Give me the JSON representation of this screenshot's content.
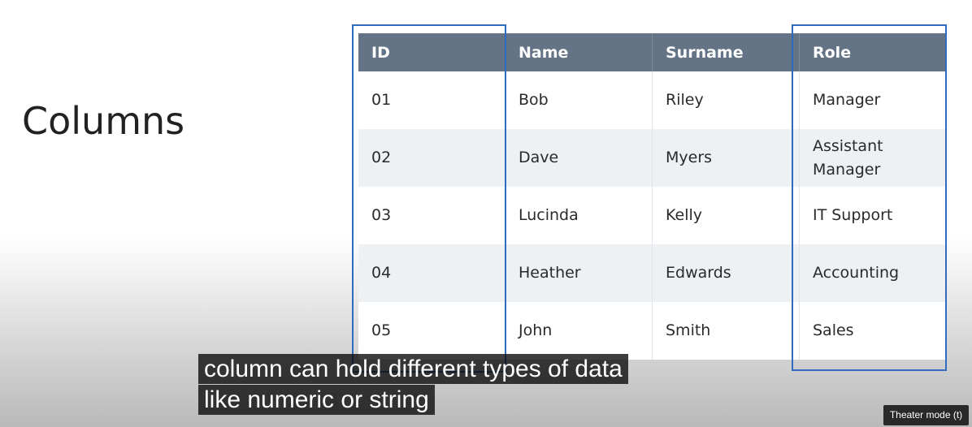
{
  "slide": {
    "title": "Columns"
  },
  "table": {
    "headers": [
      "ID",
      "Name",
      "Surname",
      "Role"
    ],
    "rows": [
      [
        "01",
        "Bob",
        "Riley",
        "Manager"
      ],
      [
        "02",
        "Dave",
        "Myers",
        "Assistant Manager"
      ],
      [
        "03",
        "Lucinda",
        "Kelly",
        "IT Support"
      ],
      [
        "04",
        "Heather",
        "Edwards",
        "Accounting"
      ],
      [
        "05",
        "John",
        "Smith",
        "Sales"
      ]
    ],
    "highlighted_columns": [
      "ID",
      "Role"
    ]
  },
  "captions": {
    "line1": "column can hold different types of data",
    "line2": "like numeric or string"
  },
  "player": {
    "tooltip": "Theater mode (t)"
  },
  "colors": {
    "header_bg": "#647486",
    "highlight_border": "#2f6bc1",
    "stripe_row": "#eef1f4"
  }
}
